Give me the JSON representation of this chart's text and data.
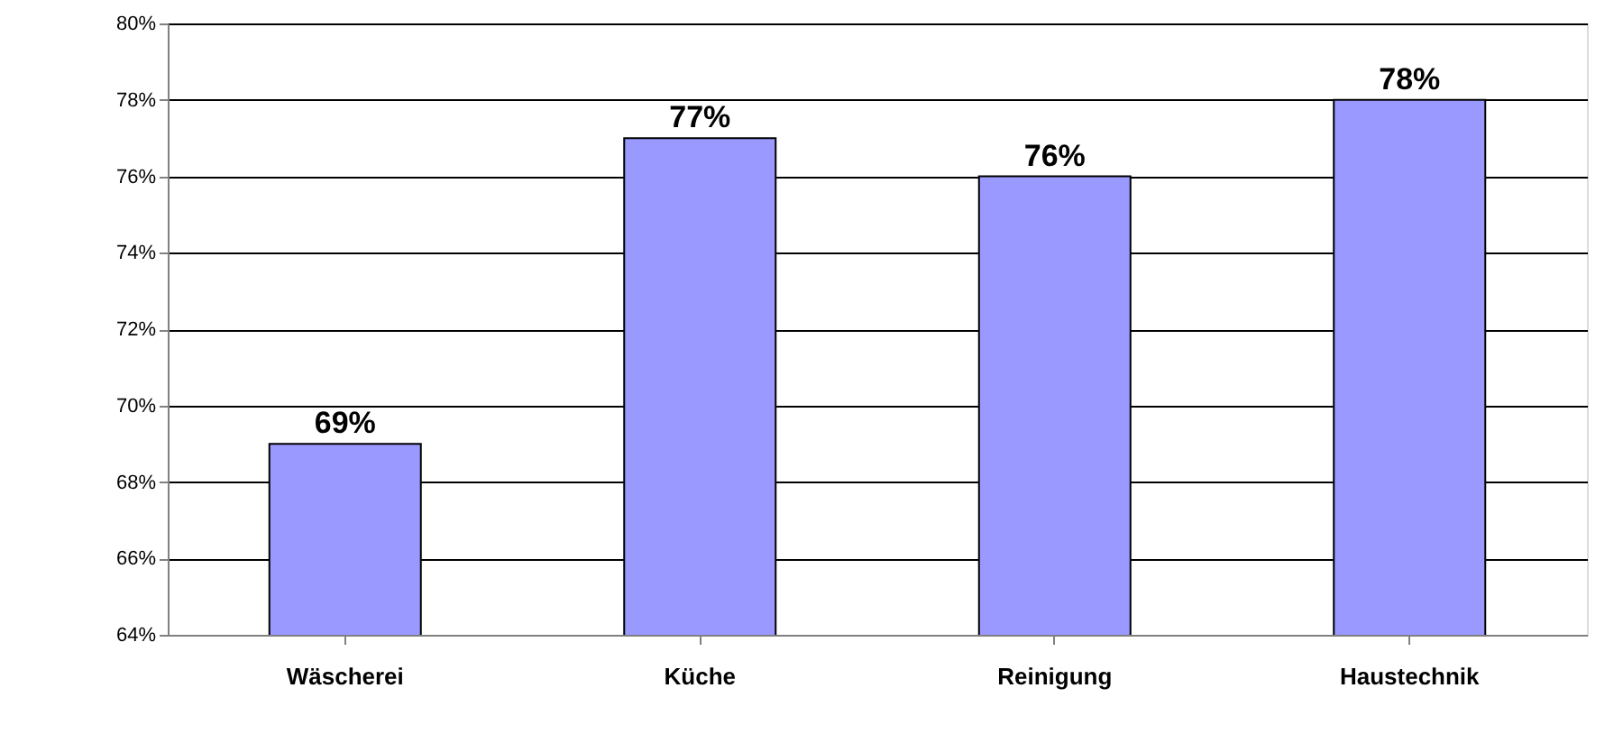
{
  "chart_data": {
    "type": "bar",
    "categories": [
      "Wäscherei",
      "Küche",
      "Reinigung",
      "Haustechnik"
    ],
    "values": [
      69,
      77,
      76,
      78
    ],
    "value_labels": [
      "69%",
      "77%",
      "76%",
      "78%"
    ],
    "color": "#9999ff",
    "ylim": [
      64,
      80
    ],
    "yticks": [
      {
        "value": 64,
        "label": "64%"
      },
      {
        "value": 66,
        "label": "66%"
      },
      {
        "value": 68,
        "label": "68%"
      },
      {
        "value": 70,
        "label": "70%"
      },
      {
        "value": 72,
        "label": "72%"
      },
      {
        "value": 74,
        "label": "74%"
      },
      {
        "value": 76,
        "label": "76%"
      },
      {
        "value": 78,
        "label": "78%"
      },
      {
        "value": 80,
        "label": "80%"
      }
    ],
    "grid": "y"
  }
}
